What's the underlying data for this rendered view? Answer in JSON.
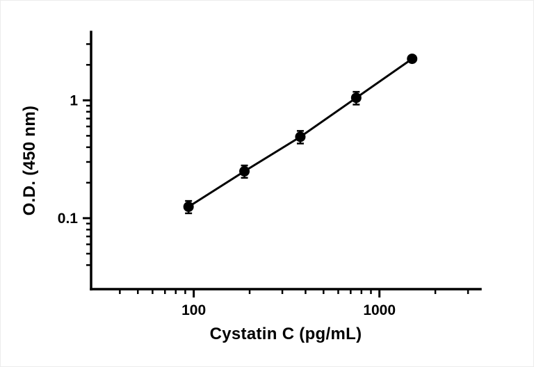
{
  "chart_data": {
    "type": "scatter",
    "title": "",
    "xlabel": "Cystatin C (pg/mL)",
    "ylabel": "O.D. (450 nm)",
    "x_scale": "log",
    "y_scale": "log",
    "xlim": [
      28,
      3500
    ],
    "ylim": [
      0.025,
      3.8
    ],
    "x": [
      93.75,
      187.5,
      375,
      750,
      1500
    ],
    "y": [
      0.125,
      0.25,
      0.49,
      1.05,
      2.25
    ],
    "y_err": [
      0.015,
      0.03,
      0.06,
      0.13,
      0.04
    ],
    "x_ticks": {
      "major": [
        100,
        1000
      ],
      "major_labels": [
        "100",
        "1000"
      ],
      "minor": [
        40,
        50,
        60,
        70,
        80,
        90,
        200,
        300,
        400,
        500,
        600,
        700,
        800,
        900,
        2000,
        3000
      ]
    },
    "y_ticks": {
      "major": [
        1,
        0.1
      ],
      "major_labels": [
        "1",
        "0.1"
      ],
      "minor": [
        0.04,
        0.05,
        0.06,
        0.07,
        0.08,
        0.09,
        0.2,
        0.3,
        0.4,
        0.5,
        0.6,
        0.7,
        0.8,
        0.9,
        2,
        3
      ]
    },
    "line": true,
    "marker": "circle",
    "marker_color": "#000000",
    "line_color": "#000000",
    "axis_color": "#000000",
    "background": "#ffffff",
    "grid": false,
    "legend": "none"
  }
}
